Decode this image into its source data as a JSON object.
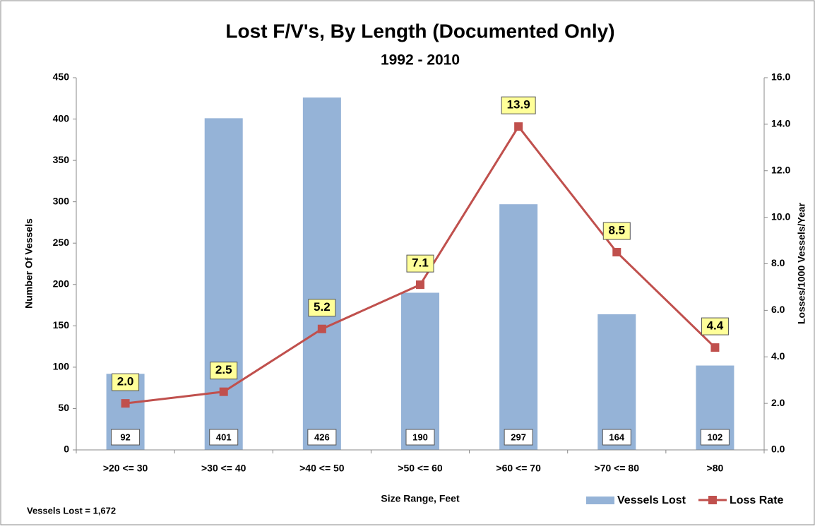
{
  "chart_data": {
    "type": "bar",
    "title": "Lost F/V's, By Length (Documented Only)",
    "subtitle": "1992 - 2010",
    "xlabel": "Size Range,  Feet",
    "ylabel": "Number Of Vessels",
    "y2label": "Losses/1000  Vessels/Year",
    "annotation": "Vessels Lost = 1,672",
    "categories": [
      ">20 <= 30",
      ">30 <= 40",
      ">40 <= 50",
      ">50 <= 60",
      ">60 <= 70",
      ">70 <= 80",
      ">80"
    ],
    "series": [
      {
        "name": "Vessels Lost",
        "type": "bar",
        "color": "#95b3d7",
        "values": [
          92,
          401,
          426,
          190,
          297,
          164,
          102
        ]
      },
      {
        "name": "Loss Rate",
        "type": "line",
        "axis": "y2",
        "color": "#c0504d",
        "values": [
          2.0,
          2.5,
          5.2,
          7.1,
          13.9,
          8.5,
          4.4
        ],
        "value_labels": [
          "2.0",
          "2.5",
          "5.2",
          "7.1",
          "13.9",
          "8.5",
          "4.4"
        ]
      }
    ],
    "ylim": [
      0,
      450
    ],
    "yticks": [
      0,
      50,
      100,
      150,
      200,
      250,
      300,
      350,
      400,
      450
    ],
    "y2lim": [
      0,
      16
    ],
    "y2ticks": [
      {
        "value": 0,
        "label": "0.0"
      },
      {
        "value": 2,
        "label": "2.0"
      },
      {
        "value": 4,
        "label": "4.0"
      },
      {
        "value": 6,
        "label": "6.0"
      },
      {
        "value": 8,
        "label": "8.0"
      },
      {
        "value": 10,
        "label": "10.0"
      },
      {
        "value": 12,
        "label": "12.0"
      },
      {
        "value": 14,
        "label": "14.0"
      },
      {
        "value": 16,
        "label": "16.0"
      }
    ],
    "grid": false,
    "legend": "bottom-right"
  }
}
